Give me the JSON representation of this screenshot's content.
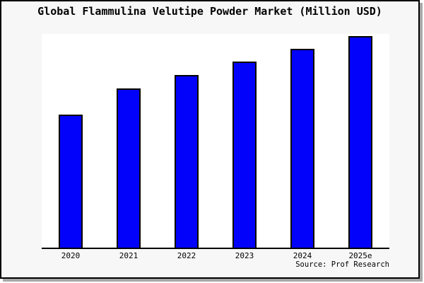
{
  "window": {
    "background": "#f7f7f7",
    "frame_border_color": "#000000",
    "shadow_color": "#a8a8a8",
    "plot_background": "#ffffff"
  },
  "title": "Global Flammulina Velutipe Powder Market (Million USD)",
  "source": "Source: Prof Research",
  "chart_data": {
    "type": "bar",
    "title": "Global Flammulina Velutipe Powder Market (Million USD)",
    "categories": [
      "2020",
      "2021",
      "2022",
      "2023",
      "2024",
      "2025e"
    ],
    "values": [
      188,
      225,
      244,
      263,
      281,
      299
    ],
    "value_note": "relative bar heights in px; chart shows no y-axis tick labels",
    "ylim": [
      0,
      302
    ],
    "xlabel": "",
    "ylabel": "",
    "grid": false,
    "legend": false,
    "bar_color": "#0202fa",
    "bar_border_color": "#000000",
    "annotation": "Source: Prof Research"
  }
}
